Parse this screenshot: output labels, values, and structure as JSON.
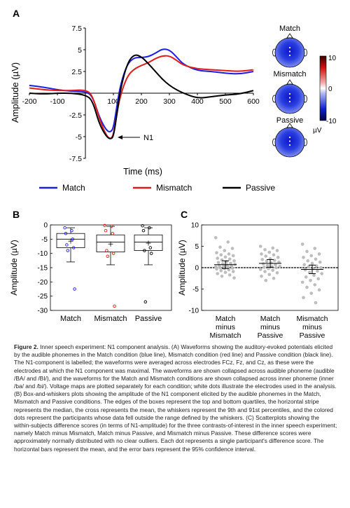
{
  "panel_a": {
    "letter": "A",
    "xlabel": "Time (ms)",
    "ylabel": "Amplitude (µV)",
    "x_ticks": [
      "-200",
      "-100",
      "0",
      "100",
      "200",
      "300",
      "400",
      "500",
      "600"
    ],
    "y_ticks": [
      "7.5",
      "5",
      "2.5",
      "0",
      "-2.5",
      "-5",
      "-7.5"
    ],
    "annotation": "N1",
    "legend": [
      "Match",
      "Mismatch",
      "Passive"
    ]
  },
  "voltage_maps": {
    "titles": [
      "Match",
      "Mismatch",
      "Passive"
    ],
    "colorbar_ticks": [
      "10",
      "0",
      "-10"
    ],
    "colorbar_unit": "µV"
  },
  "panel_b": {
    "letter": "B",
    "ylabel": "Amplitude (µV)",
    "y_ticks": [
      "0",
      "-5",
      "-10",
      "-15",
      "-20",
      "-25",
      "-30"
    ],
    "categories": [
      "Match",
      "Mismatch",
      "Passive"
    ]
  },
  "panel_c": {
    "letter": "C",
    "ylabel": "Amplitude (µV)",
    "y_ticks": [
      "10",
      "5",
      "0",
      "-5",
      "-10"
    ],
    "categories": [
      [
        "Match",
        "minus",
        "Mismatch"
      ],
      [
        "Match",
        "minus",
        "Passive"
      ],
      [
        "Mismatch",
        "minus",
        "Passive"
      ]
    ]
  },
  "colors": {
    "match": "#1c1fe0",
    "mismatch": "#e01c1c",
    "passive": "#000000",
    "dots_c": "#bdbdbd"
  },
  "chart_data": [
    {
      "type": "line",
      "panel": "A",
      "xlabel": "Time (ms)",
      "ylabel": "Amplitude (µV)",
      "xlim": [
        -200,
        600
      ],
      "ylim": [
        -7.5,
        7.5
      ],
      "series": [
        {
          "name": "Match",
          "x": [
            -200,
            -150,
            -100,
            -50,
            0,
            25,
            50,
            75,
            90,
            100,
            110,
            125,
            150,
            175,
            200,
            225,
            250,
            275,
            300,
            325,
            350,
            400,
            450,
            500,
            550,
            600
          ],
          "y": [
            0.9,
            0.7,
            0.4,
            0.2,
            0.2,
            -0.3,
            -2.8,
            -4.3,
            -4.5,
            -4.0,
            -2.0,
            1.0,
            3.4,
            4.1,
            4.1,
            4.2,
            4.6,
            5.1,
            5.0,
            4.2,
            3.3,
            2.6,
            2.5,
            2.3,
            2.2,
            2.5
          ]
        },
        {
          "name": "Mismatch",
          "x": [
            -200,
            -150,
            -100,
            -50,
            0,
            25,
            50,
            75,
            90,
            100,
            110,
            125,
            150,
            175,
            200,
            225,
            250,
            275,
            300,
            325,
            350,
            400,
            450,
            500,
            550,
            600
          ],
          "y": [
            0.6,
            0.4,
            0.3,
            0.3,
            0.4,
            -0.2,
            -3.0,
            -4.9,
            -5.3,
            -4.8,
            -2.8,
            -0.2,
            2.0,
            2.8,
            3.2,
            3.5,
            4.0,
            4.3,
            4.3,
            3.8,
            3.2,
            2.8,
            2.7,
            2.6,
            2.5,
            2.7
          ]
        },
        {
          "name": "Passive",
          "x": [
            -200,
            -150,
            -100,
            -50,
            0,
            25,
            50,
            75,
            90,
            100,
            110,
            125,
            150,
            175,
            200,
            225,
            250,
            275,
            300,
            325,
            350,
            400,
            450,
            500,
            550,
            600
          ],
          "y": [
            0.0,
            -0.1,
            0.0,
            0.0,
            -0.2,
            -0.8,
            -3.6,
            -5.0,
            -5.3,
            -5.0,
            -3.0,
            0.5,
            3.5,
            4.5,
            4.2,
            3.4,
            2.5,
            1.6,
            0.9,
            0.4,
            0.0,
            -0.6,
            -0.4,
            -0.2,
            -0.1,
            0.3
          ]
        }
      ]
    },
    {
      "type": "box",
      "panel": "B",
      "ylabel": "Amplitude (µV)",
      "ylim": [
        -30,
        0
      ],
      "categories": [
        "Match",
        "Mismatch",
        "Passive"
      ],
      "boxes": [
        {
          "name": "Match",
          "p9": -13,
          "q1": -8,
          "median": -5,
          "q3": -3,
          "p91": -1,
          "mean": -5.7,
          "outliers": [
            -1,
            -2,
            -3,
            -5,
            -7,
            -8,
            -9,
            -22.5
          ]
        },
        {
          "name": "Mismatch",
          "p9": -14,
          "q1": -9.5,
          "median": -6,
          "q3": -3.5,
          "p91": -0.5,
          "mean": -6.7,
          "outliers": [
            -0.2,
            -0.4,
            -2,
            -3,
            -9,
            -10,
            -11,
            -28.5
          ]
        },
        {
          "name": "Passive",
          "p9": -14,
          "q1": -9,
          "median": -6,
          "q3": -3.5,
          "p91": -1,
          "mean": -6.4,
          "outliers": [
            -0.3,
            -1,
            -2,
            -8,
            -9,
            -10,
            -27
          ]
        }
      ]
    },
    {
      "type": "scatter",
      "panel": "C",
      "ylabel": "Amplitude (µV)",
      "ylim": [
        -10,
        10
      ],
      "categories": [
        "Match minus Mismatch",
        "Match minus Passive",
        "Mismatch minus Passive"
      ],
      "groups": [
        {
          "name": "Match minus Mismatch",
          "mean": 0.7,
          "ci": [
            -0.2,
            1.6
          ],
          "values": [
            7,
            6,
            4.8,
            4.5,
            4,
            3.5,
            3.2,
            3,
            2.8,
            2.5,
            2.2,
            2,
            1.8,
            1.6,
            1.4,
            1.2,
            1,
            0.9,
            0.8,
            0.6,
            0.5,
            0.4,
            0.3,
            0.2,
            0.1,
            0,
            -0.1,
            -0.2,
            -0.3,
            -0.5,
            -0.7,
            -0.9,
            -1.1,
            -1.4,
            -1.7,
            -2,
            -2.4
          ]
        },
        {
          "name": "Match minus Passive",
          "mean": 1.0,
          "ci": [
            0.1,
            1.9
          ],
          "values": [
            5,
            4.6,
            4.2,
            4,
            3.6,
            3.2,
            3,
            2.7,
            2.4,
            2.1,
            1.9,
            1.7,
            1.5,
            1.3,
            1.1,
            0.9,
            0.7,
            0.5,
            0.3,
            0.2,
            0.1,
            0,
            -0.2,
            -0.4,
            -0.6,
            -0.9,
            -1.2,
            -1.6,
            -2,
            -2.5,
            -3
          ]
        },
        {
          "name": "Mismatch minus Passive",
          "mean": -0.4,
          "ci": [
            -1.4,
            0.6
          ],
          "values": [
            5.5,
            4.5,
            3.8,
            3.2,
            2.8,
            2.4,
            2,
            1.6,
            1.3,
            1,
            0.7,
            0.4,
            0.2,
            0,
            -0.2,
            -0.5,
            -0.8,
            -1.1,
            -1.4,
            -1.8,
            -2.2,
            -2.6,
            -3,
            -3.4,
            -4,
            -4.6,
            -5.2,
            -6,
            -7,
            -8.2
          ]
        }
      ]
    }
  ],
  "caption": {
    "lead": "Figure 2.",
    "body": " Inner speech experiment: N1 component analysis. (A) Waveforms showing the auditory-evoked potentials elicited by the audible phonemes in the Match condition (blue line), Mismatch condition (red line) and Passive condition (black line). The N1-component is labelled; the waveforms were averaged across electrodes FCz, Fz, and Cz, as these were the electrodes at which the N1 component was maximal. The waveforms are shown collapsed across audible phoneme (audible /BA/ and /BI/), and the waveforms for the Match and Mismatch conditions are shown collapsed across inner phoneme (inner /ba/ and /bi/). Voltage maps are plotted separately for each condition; white dots illustrate the electrodes used in the analysis. (B) Box-and-whiskers plots showing the amplitude of the N1 component elicited by the audible phonemes in the Match, Mismatch and Passive conditions. The edges of the boxes represent the top and bottom quartiles, the horizontal stripe represents the median, the cross represents the mean, the whiskers represent the 9th and 91st percentiles, and the colored dots represent the participants whose data fell outside the range defined by the whiskers. (C) Scatterplots showing the within-subjects difference scores (in terms of N1-amplitude) for the three contrasts-of-interest in the inner speech experiment; namely Match minus Mismatch, Match minus Passive, and Mismatch minus Passive. These difference scores were approximately normally distributed with no clear outliers. Each dot represents a single participant's difference score. The horizontal bars represent the mean, and the error bars represent the 95% confidence interval."
  }
}
